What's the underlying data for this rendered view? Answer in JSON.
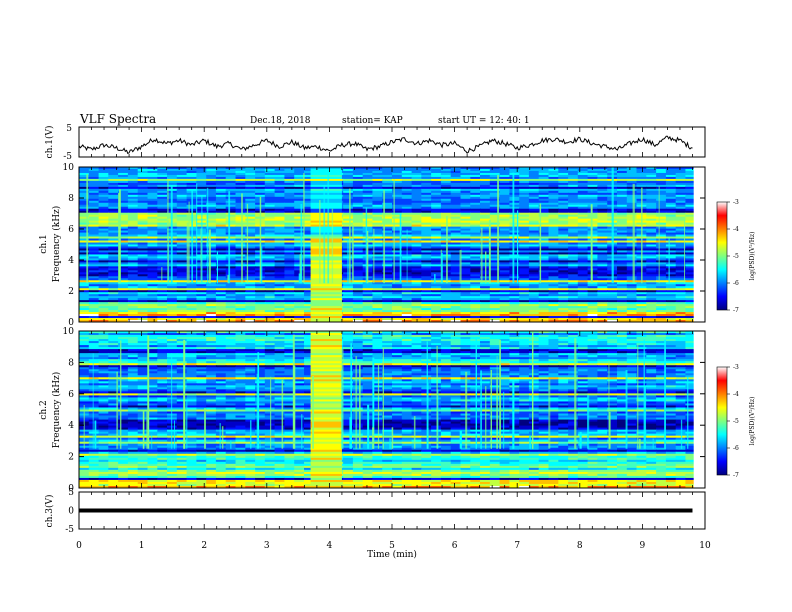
{
  "header": {
    "title": "VLF Spectra",
    "date": "Dec.18, 2018",
    "station": "station= KAP",
    "start": "start  UT =   12: 40: 1"
  },
  "chart_data": [
    {
      "type": "line",
      "ylabel": "ch.1(V)",
      "ylim": [
        -5,
        5
      ],
      "yticks": [
        "5",
        "-5"
      ],
      "xlim": [
        0,
        10
      ],
      "x": [
        0,
        0.2,
        0.4,
        0.6,
        0.8,
        1.0,
        1.2,
        1.4,
        1.6,
        1.8,
        2.0,
        2.2,
        2.4,
        2.6,
        2.8,
        3.0,
        3.2,
        3.4,
        3.6,
        3.8,
        4.0,
        4.2,
        4.4,
        4.6,
        4.8,
        5.0,
        5.2,
        5.4,
        5.6,
        5.8,
        6.0,
        6.2,
        6.4,
        6.6,
        6.8,
        7.0,
        7.2,
        7.4,
        7.6,
        7.8,
        8.0,
        8.2,
        8.4,
        8.6,
        8.8,
        9.0,
        9.2,
        9.4,
        9.6,
        9.8
      ],
      "y": [
        -1.5,
        -2.5,
        -1.0,
        -2.0,
        -3.5,
        -1.5,
        1.0,
        -0.5,
        0.5,
        -1.0,
        0.5,
        -1.5,
        -0.5,
        -2.5,
        -1.0,
        0.5,
        -1.5,
        0.0,
        -2.0,
        -1.5,
        -3.0,
        -1.0,
        -0.5,
        -2.5,
        -1.5,
        0.0,
        1.0,
        -0.5,
        0.5,
        -1.0,
        -0.5,
        -3.0,
        -1.5,
        0.5,
        -0.5,
        -2.0,
        -1.0,
        0.5,
        1.0,
        0.0,
        1.0,
        -0.5,
        -1.5,
        -2.5,
        -0.5,
        1.0,
        -1.0,
        1.5,
        0.5,
        -2.0
      ]
    },
    {
      "type": "heatmap",
      "ylabel_top": "ch.1",
      "ylabel": "Frequency (kHz)",
      "ylim": [
        0,
        10
      ],
      "yticks": [
        "0",
        "2",
        "4",
        "6",
        "8",
        "10"
      ],
      "xlim": [
        0,
        10
      ],
      "colorbar": {
        "label": "log(PSD)(V²/Hz)",
        "range": [
          -7,
          -3
        ],
        "ticks": [
          "-3",
          "-4",
          "-5",
          "-6",
          "-7"
        ]
      }
    },
    {
      "type": "heatmap",
      "ylabel_top": "ch.2",
      "ylabel": "Frequency (kHz)",
      "ylim": [
        0,
        10
      ],
      "yticks": [
        "0",
        "2",
        "4",
        "6",
        "8",
        "10"
      ],
      "xlim": [
        0,
        10
      ],
      "colorbar": {
        "label": "log(PSD)(V²/Hz)",
        "range": [
          -7,
          -3
        ],
        "ticks": [
          "-3",
          "-4",
          "-5",
          "-6",
          "-7"
        ]
      }
    },
    {
      "type": "line",
      "ylabel": "ch.3(V)",
      "ylim": [
        -5,
        5
      ],
      "yticks": [
        "5",
        "0",
        "-5"
      ],
      "xlim": [
        0,
        10
      ],
      "x": [
        0,
        9.8
      ],
      "y": [
        0,
        0
      ]
    }
  ],
  "xaxis": {
    "label": "Time (min)",
    "ticks": [
      "0",
      "1",
      "2",
      "3",
      "4",
      "5",
      "6",
      "7",
      "8",
      "9",
      "10"
    ]
  }
}
